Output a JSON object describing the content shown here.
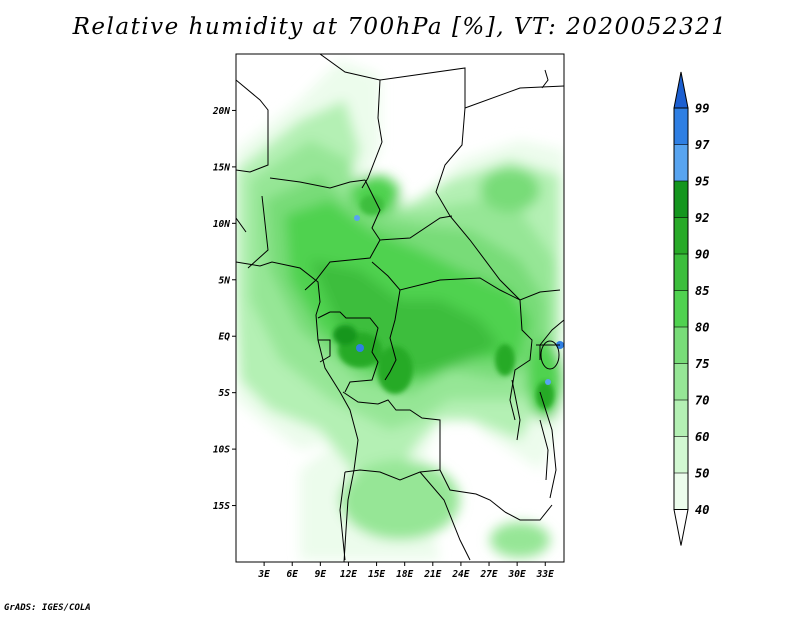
{
  "title": "Relative humidity at 700hPa [%], VT: 2020052321",
  "credit": "GrADS: IGES/COLA",
  "map": {
    "lon_range": [
      0,
      35
    ],
    "lat_range": [
      -20,
      25
    ],
    "lon_ticks": [
      "3E",
      "6E",
      "9E",
      "12E",
      "15E",
      "18E",
      "21E",
      "24E",
      "27E",
      "30E",
      "33E"
    ],
    "lon_tick_values": [
      3,
      6,
      9,
      12,
      15,
      18,
      21,
      24,
      27,
      30,
      33
    ],
    "lat_ticks": [
      "20N",
      "15N",
      "10N",
      "5N",
      "EQ",
      "5S",
      "10S",
      "15S"
    ],
    "lat_tick_values": [
      20,
      15,
      10,
      5,
      0,
      -5,
      -10,
      -15
    ]
  },
  "colorbar": {
    "levels": [
      "99",
      "97",
      "95",
      "92",
      "90",
      "85",
      "80",
      "75",
      "70",
      "60",
      "50",
      "40"
    ],
    "colors": [
      "#1c5fd0",
      "#2f7fe3",
      "#58a4f0",
      "#14961e",
      "#28aa28",
      "#3cbe3c",
      "#50d250",
      "#78dc78",
      "#96e696",
      "#b4f0b4",
      "#d2f8d2",
      "#ecfcec"
    ]
  }
}
